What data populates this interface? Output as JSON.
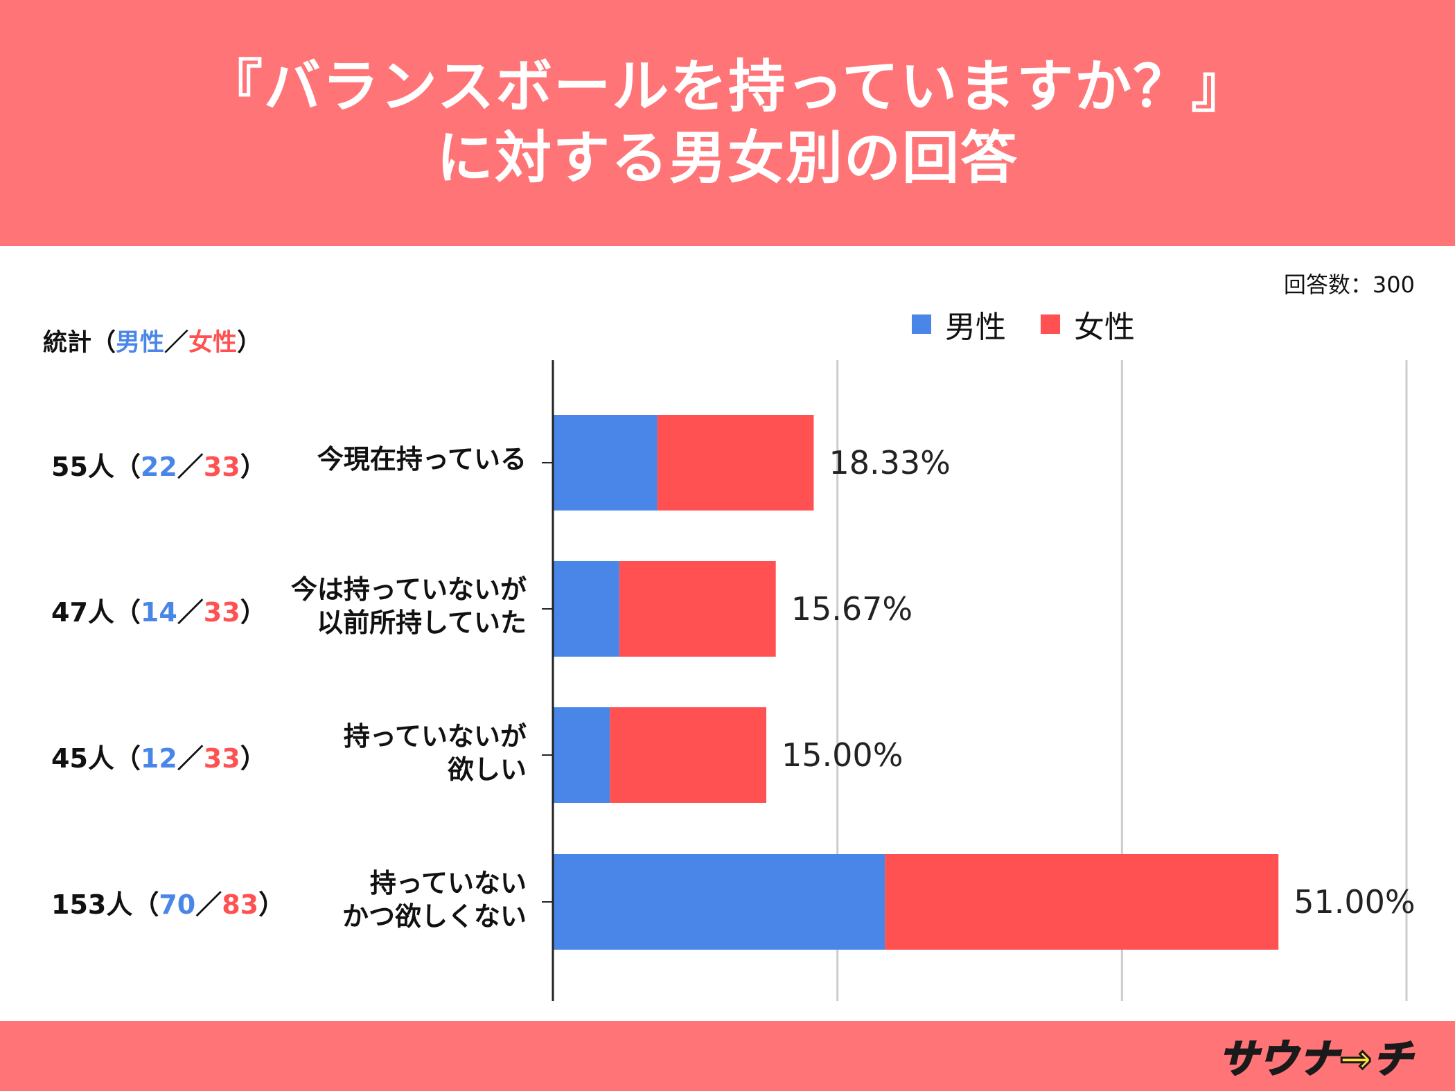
{
  "title": {
    "line1": "『バランスボールを持っていますか？』",
    "line2": "に対する男女別の回答"
  },
  "respondents_note": "回答数：300",
  "stats_header": {
    "prefix": "統計（",
    "male": "男性",
    "slash": "／",
    "female": "女性",
    "suffix": "）"
  },
  "logo_text": "サウナ→チ",
  "colors": {
    "header_bg": "#ff7477",
    "male": "#4a86e8",
    "female": "#ff5152"
  },
  "chart_data": {
    "type": "bar",
    "orientation": "horizontal",
    "stacked": true,
    "categories": [
      "今現在持っている",
      "今は持っていないが以前所持していた",
      "持っていないが欲しい",
      "持っていないかつ欲しくない"
    ],
    "category_lines": [
      [
        "今現在持っている"
      ],
      [
        "今は持っていないが",
        "以前所持していた"
      ],
      [
        "持っていないが",
        "欲しい"
      ],
      [
        "持っていない",
        "かつ欲しくない"
      ]
    ],
    "series": [
      {
        "name": "男性",
        "values": [
          22,
          14,
          12,
          70
        ]
      },
      {
        "name": "女性",
        "values": [
          33,
          33,
          33,
          83
        ]
      }
    ],
    "totals": [
      55,
      47,
      45,
      153
    ],
    "percent_labels": [
      "18.33%",
      "15.67%",
      "15.00%",
      "51.00%"
    ],
    "stat_labels": [
      {
        "total": "55人（",
        "male": "22",
        "slash": "／",
        "female": "33",
        "close": "）"
      },
      {
        "total": "47人（",
        "male": "14",
        "slash": "／",
        "female": "33",
        "close": "）"
      },
      {
        "total": "45人（",
        "male": "12",
        "slash": "／",
        "female": "33",
        "close": "）"
      },
      {
        "total": "153人（",
        "male": "70",
        "slash": "／",
        "female": "83",
        "close": "）"
      }
    ],
    "xlim": [
      0,
      180
    ],
    "gridlines": [
      60,
      120,
      180
    ],
    "legend": [
      "男性",
      "女性"
    ],
    "legend_position": "top"
  }
}
